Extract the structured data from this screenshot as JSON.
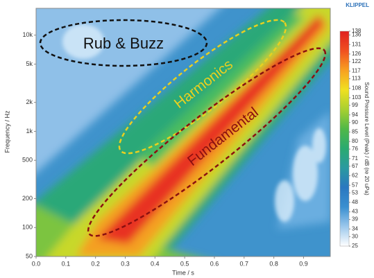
{
  "chart_data": {
    "type": "spectrogram",
    "brand": "KLIPPEL",
    "xlabel": "Time / s",
    "ylabel": "Frequency / Hz",
    "xlim": [
      0,
      0.99
    ],
    "xticks": [
      {
        "value": 0,
        "label": "0.0"
      },
      0.1,
      0.2,
      0.3,
      0.4,
      0.5,
      0.6,
      0.7,
      0.8,
      0.9
    ],
    "ylim": [
      50,
      19000
    ],
    "yscale": "log",
    "yticks": [
      50,
      100,
      200,
      500,
      {
        "value": 1000,
        "label": "1k"
      },
      {
        "value": 2000,
        "label": "2k"
      },
      {
        "value": 5000,
        "label": "5k"
      },
      {
        "value": 10000,
        "label": "10k"
      }
    ],
    "colorbar": {
      "label": "Sound Pressure Level (Peak) / dB (re 20 uPa)",
      "clim": [
        25,
        138
      ],
      "ticks": [
        138,
        136,
        131,
        126,
        122,
        117,
        113,
        108,
        103,
        99,
        94,
        90,
        85,
        80,
        76,
        71,
        67,
        62,
        57,
        53,
        48,
        43,
        39,
        34,
        30,
        25
      ],
      "colors": [
        "#ffffff",
        "#9cc8ec",
        "#3a8fd0",
        "#2a78c0",
        "#2a9aa0",
        "#2aaa70",
        "#50b848",
        "#a8d030",
        "#f0e020",
        "#f8a020",
        "#f05020",
        "#e02020"
      ]
    },
    "annotations": [
      {
        "text": "Rub & Buzz",
        "color": "#111111"
      },
      {
        "text": "Harmonics",
        "color": "#e8d020"
      },
      {
        "text": "Fundamental",
        "color": "#8b1010"
      }
    ]
  }
}
